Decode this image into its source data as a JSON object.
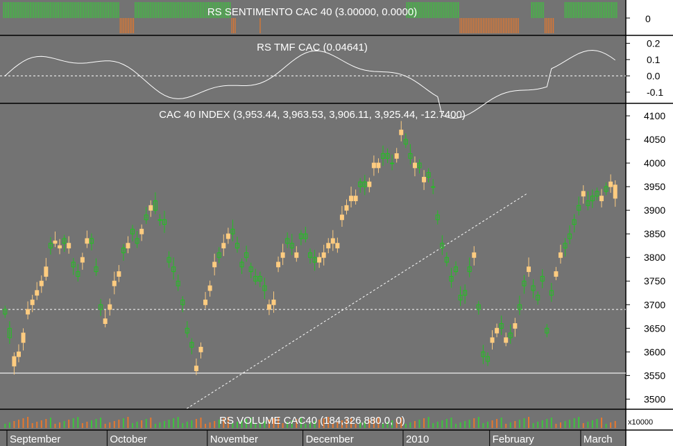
{
  "panels": {
    "sentiment": {
      "title": "RS SENTIMENTO CAC 40 (3.00000, 0.0000)",
      "y_tick": "0",
      "colors": {
        "positive": "#3cc63c",
        "negative": "#e8782c"
      },
      "bars": [
        1,
        1,
        1,
        1,
        1,
        1,
        1,
        1,
        1,
        1,
        1,
        1,
        1,
        1,
        1,
        1,
        1,
        1,
        1,
        1,
        1,
        1,
        1,
        1,
        1,
        1,
        1,
        1,
        1,
        1,
        1,
        1,
        1,
        1,
        1,
        1,
        1,
        1,
        1,
        1,
        1,
        1,
        1,
        1,
        1,
        1,
        1,
        1,
        1,
        1,
        1,
        1,
        1,
        1,
        1,
        1,
        1,
        1,
        1,
        1,
        1,
        1,
        1,
        1,
        1,
        1,
        1,
        1,
        1,
        1,
        -1,
        -1,
        -1,
        -1,
        -1,
        -1,
        -1,
        -1,
        -1,
        1,
        1,
        1,
        1,
        1,
        1,
        1,
        1,
        1,
        1,
        1,
        1,
        1,
        1,
        1,
        1,
        1,
        1,
        1,
        1,
        1,
        1,
        1,
        1,
        1,
        1,
        1,
        1,
        1,
        1,
        1,
        1,
        1,
        1,
        1,
        1,
        1,
        1,
        1,
        1,
        1,
        1,
        1,
        1,
        1,
        1,
        1,
        1,
        1,
        1,
        1,
        1,
        1,
        1,
        1,
        1,
        1,
        1,
        -1,
        -1,
        -1,
        0,
        0,
        0,
        0,
        0,
        0,
        0,
        0,
        0,
        0,
        0,
        0,
        0,
        0,
        -1,
        0,
        0,
        0,
        0,
        0,
        0,
        0,
        0,
        0,
        0,
        0,
        0,
        0,
        0,
        0,
        0,
        0,
        0,
        0,
        0,
        0,
        0,
        0,
        0,
        0,
        0,
        0,
        0,
        0,
        0,
        0,
        0,
        0,
        0,
        0,
        0,
        0,
        0,
        0,
        0,
        0,
        0,
        0,
        0,
        0,
        0,
        0,
        0,
        0,
        0,
        0,
        0,
        0,
        0,
        0,
        0,
        0,
        0,
        0,
        0,
        0,
        0,
        0,
        0,
        0,
        0,
        0,
        0,
        0,
        0,
        0,
        0,
        0,
        0,
        0,
        0,
        0,
        0,
        0,
        0,
        0,
        0,
        0,
        0,
        0,
        0,
        0,
        1,
        1,
        1,
        1,
        1,
        1,
        1,
        1,
        1,
        1,
        1,
        1,
        1,
        1,
        1,
        1,
        1,
        1,
        1,
        1,
        1,
        1,
        1,
        1,
        1,
        1,
        1,
        1,
        1,
        1,
        1,
        1,
        -1,
        -1,
        -1,
        -1,
        -1,
        -1,
        -1,
        -1,
        -1,
        -1,
        -1,
        -1,
        -1,
        -1,
        -1,
        -1,
        -1,
        -1,
        -1,
        -1,
        -1,
        -1,
        -1,
        -1,
        -1,
        -1,
        -1,
        -1,
        -1,
        -1,
        -1,
        -1,
        -1,
        -1,
        -1,
        -1,
        0,
        0,
        0,
        0,
        0,
        0,
        0,
        1,
        1,
        1,
        1,
        1,
        1,
        1,
        1,
        -1,
        -1,
        -1,
        -1,
        -1,
        -1,
        0,
        0,
        0,
        0,
        0,
        0,
        1,
        1,
        1,
        1,
        1,
        1,
        1,
        1,
        1,
        1,
        1,
        1,
        1,
        1,
        1,
        1,
        1,
        1,
        1,
        1,
        1,
        1,
        1,
        1,
        1,
        1,
        1,
        1,
        1,
        1,
        1,
        1
      ]
    },
    "tmf": {
      "title": "RS TMF CAC (0.04641)",
      "y_ticks": [
        "0.2",
        "0.1",
        "0.0",
        "-0.1"
      ],
      "y_tick_values": [
        0.2,
        0.1,
        0.0,
        -0.1
      ],
      "ylim": [
        -0.16,
        0.24
      ]
    },
    "price": {
      "title": "CAC 40 INDEX (3,953.44, 3,963.53, 3,906.11, 3,925.44, -12.7400)",
      "y_ticks": [
        "4100",
        "4050",
        "4000",
        "3950",
        "3900",
        "3850",
        "3800",
        "3750",
        "3700",
        "3650",
        "3600",
        "3550",
        "3500"
      ],
      "y_tick_values": [
        4100,
        4050,
        4000,
        3950,
        3900,
        3850,
        3800,
        3750,
        3700,
        3650,
        3600,
        3550,
        3500
      ],
      "ylim": [
        3480,
        4125
      ],
      "support_level": 3555,
      "mid_dashed_level": 3690,
      "trendline": [
        {
          "i": 0,
          "v": 3480
        },
        {
          "i": 110,
          "v": 3935
        }
      ],
      "colors": {
        "up": "#22c022",
        "down": "#ffcc80"
      }
    },
    "volume": {
      "title": "RS VOLUME CAC40 (184,326,880.0, 0)",
      "y_tick": "x10000",
      "colors": {
        "up": "#3cc63c",
        "down": "#e8782c"
      }
    }
  },
  "x_axis": {
    "months": [
      {
        "label": "September",
        "index": 0
      },
      {
        "label": "October",
        "index": 22
      },
      {
        "label": "November",
        "index": 44
      },
      {
        "label": "December",
        "index": 65
      },
      {
        "label": "2010",
        "index": 87
      },
      {
        "label": "February",
        "index": 106
      },
      {
        "label": "March",
        "index": 126
      }
    ]
  },
  "chart_data": {
    "type": "candlestick",
    "title": "CAC 40 INDEX (3,953.44, 3,963.53, 3,906.11, 3,925.44, -12.7400)",
    "ylim": [
      3480,
      4125
    ],
    "last_bar": {
      "open": 3953.44,
      "high": 3963.53,
      "low": 3906.11,
      "close": 3925.44,
      "change": -12.74
    },
    "close": [
      3690,
      3650,
      3570,
      3590,
      3620,
      3680,
      3700,
      3720,
      3740,
      3760,
      3830,
      3830,
      3820,
      3840,
      3820,
      3790,
      3770,
      3790,
      3830,
      3840,
      3780,
      3700,
      3660,
      3690,
      3740,
      3760,
      3820,
      3820,
      3860,
      3840,
      3850,
      3890,
      3900,
      3920,
      3880,
      3880,
      3800,
      3780,
      3750,
      3710,
      3650,
      3620,
      3560,
      3600,
      3700,
      3730,
      3780,
      3810,
      3820,
      3840,
      3860,
      3830,
      3790,
      3810,
      3780,
      3760,
      3760,
      3740,
      3690,
      3700,
      3780,
      3800,
      3840,
      3830,
      3800,
      3850,
      3850,
      3810,
      3800,
      3790,
      3800,
      3820,
      3830,
      3820,
      3880,
      3900,
      3920,
      3920,
      3960,
      3960,
      3950,
      3990,
      3990,
      4020,
      4020,
      4000,
      4010,
      4060,
      4050,
      4020,
      3990,
      4000,
      3960,
      3980,
      3950,
      3890,
      3830,
      3800,
      3760,
      3780,
      3720,
      3730,
      3780,
      3800,
      3700,
      3600,
      3590,
      3620,
      3640,
      3660,
      3620,
      3640,
      3650,
      3700,
      3750,
      3770,
      3740,
      3720,
      3760,
      3650,
      3730,
      3760,
      3800,
      3830,
      3850,
      3880,
      3910,
      3930,
      3920,
      3930,
      3940,
      3920,
      3950,
      3950,
      3925.44
    ],
    "open": [
      3680,
      3630,
      3590,
      3600,
      3640,
      3690,
      3710,
      3730,
      3750,
      3780,
      3820,
      3835,
      3825,
      3830,
      3830,
      3780,
      3760,
      3800,
      3840,
      3830,
      3770,
      3690,
      3670,
      3700,
      3750,
      3770,
      3810,
      3830,
      3850,
      3830,
      3860,
      3880,
      3910,
      3900,
      3880,
      3870,
      3790,
      3770,
      3740,
      3700,
      3640,
      3610,
      3570,
      3610,
      3710,
      3740,
      3790,
      3800,
      3830,
      3850,
      3850,
      3820,
      3780,
      3800,
      3770,
      3750,
      3750,
      3730,
      3700,
      3710,
      3790,
      3810,
      3830,
      3820,
      3810,
      3840,
      3840,
      3800,
      3790,
      3800,
      3810,
      3830,
      3840,
      3830,
      3890,
      3910,
      3930,
      3930,
      3950,
      3950,
      3960,
      4000,
      4000,
      4010,
      4010,
      4000,
      4020,
      4070,
      4040,
      4010,
      4000,
      3990,
      3970,
      3970,
      3950,
      3880,
      3820,
      3790,
      3750,
      3770,
      3710,
      3720,
      3770,
      3810,
      3690,
      3590,
      3580,
      3630,
      3650,
      3650,
      3630,
      3630,
      3660,
      3690,
      3740,
      3780,
      3730,
      3710,
      3750,
      3640,
      3720,
      3770,
      3810,
      3820,
      3840,
      3870,
      3900,
      3940,
      3910,
      3920,
      3930,
      3930,
      3940,
      3960,
      3953.44
    ]
  }
}
